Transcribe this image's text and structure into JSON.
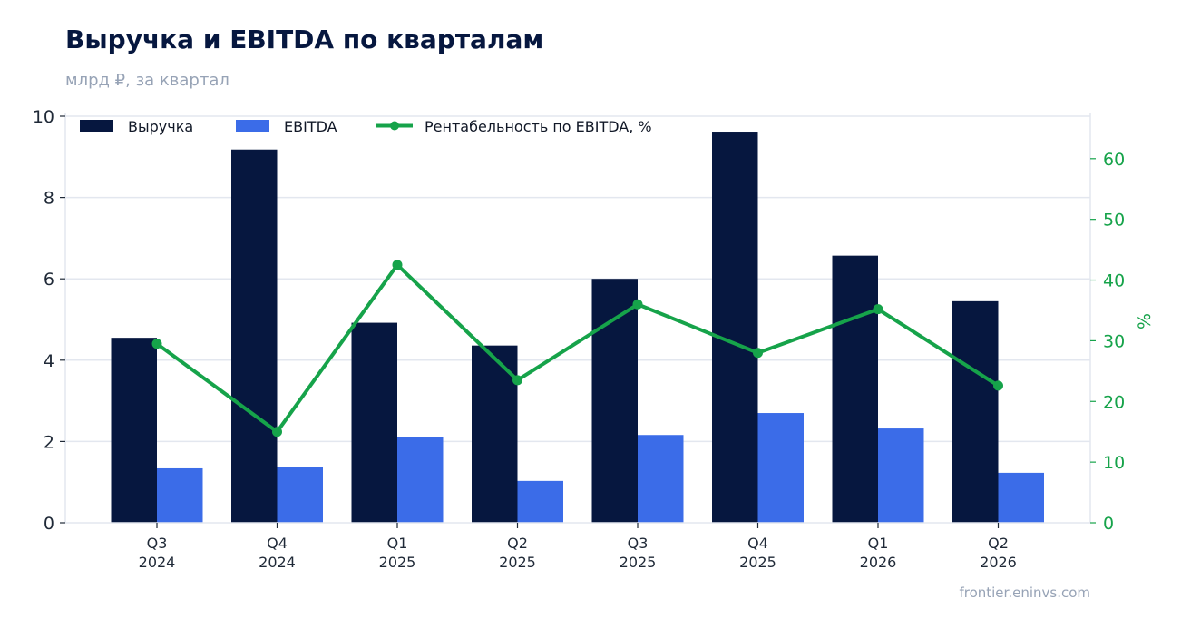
{
  "chart_data": {
    "type": "bar",
    "title": "Выручка и EBITDA по кварталам",
    "subtitle": "млрд ₽, за квартал",
    "categories": [
      [
        "Q3",
        "2024"
      ],
      [
        "Q4",
        "2024"
      ],
      [
        "Q1",
        "2025"
      ],
      [
        "Q2",
        "2025"
      ],
      [
        "Q3",
        "2025"
      ],
      [
        "Q4",
        "2025"
      ],
      [
        "Q1",
        "2026"
      ],
      [
        "Q2",
        "2026"
      ]
    ],
    "series": [
      {
        "name": "Выручка",
        "type": "bar",
        "axis": "left",
        "color": "#06173f",
        "values": [
          4.55,
          9.18,
          4.92,
          4.36,
          6.0,
          9.62,
          6.57,
          5.45
        ]
      },
      {
        "name": "EBITDA",
        "type": "bar",
        "axis": "left",
        "color": "#3b6ce8",
        "values": [
          1.34,
          1.38,
          2.1,
          1.03,
          2.16,
          2.7,
          2.32,
          1.23
        ]
      },
      {
        "name": "Рентабельность по EBITDA, %",
        "type": "line",
        "axis": "right",
        "color": "#16a34a",
        "values": [
          29.5,
          15.0,
          42.5,
          23.5,
          36.0,
          28.0,
          35.2,
          22.6
        ]
      }
    ],
    "y_left": {
      "range": [
        0,
        10
      ],
      "ticks": [
        0,
        2,
        4,
        6,
        8,
        10
      ]
    },
    "y_right": {
      "label": "%",
      "range": [
        0,
        67
      ],
      "ticks": [
        0,
        10,
        20,
        30,
        40,
        50,
        60
      ]
    },
    "grid": true,
    "legend": "top-left",
    "source": "frontier.eninvs.com"
  }
}
